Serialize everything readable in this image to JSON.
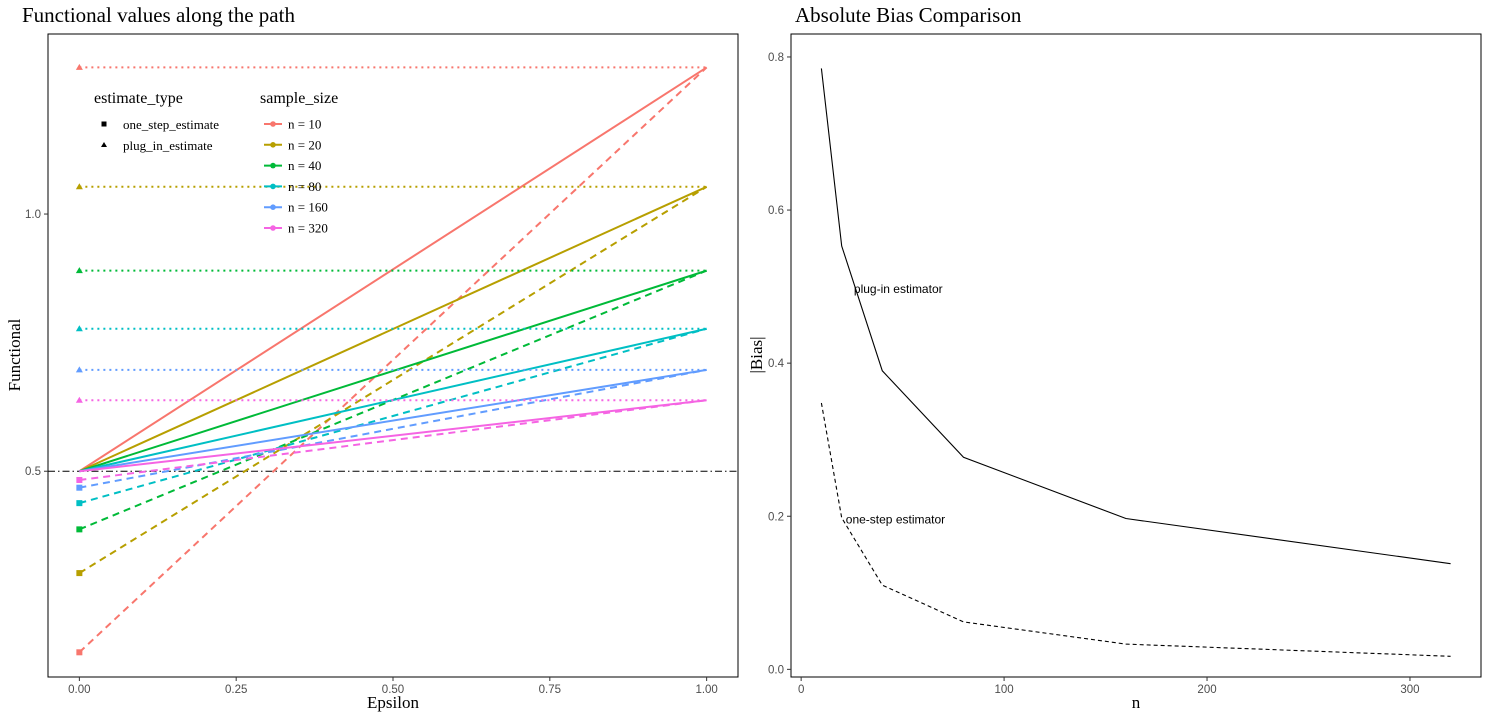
{
  "chart_data": [
    {
      "type": "line",
      "title": "Functional values along the path",
      "xlabel": "Epsilon",
      "ylabel": "Functional",
      "xlim": [
        -0.05,
        1.05
      ],
      "ylim": [
        0.1,
        1.35
      ],
      "xticks": [
        0,
        0.25,
        0.5,
        0.75,
        1
      ],
      "xtick_labels": [
        "0.00",
        "0.25",
        "0.50",
        "0.75",
        "1.00"
      ],
      "yticks": [
        0.5,
        1.0
      ],
      "ytick_labels": [
        "0.5",
        "1.0"
      ],
      "grid": false,
      "reference_line": {
        "y": 0.5,
        "style": "dot-dash"
      },
      "legend": {
        "placement": "top-left",
        "shape_title": "estimate_type",
        "shape_items": [
          {
            "label": "one_step_estimate",
            "shape": "square"
          },
          {
            "label": "plug_in_estimate",
            "shape": "triangle"
          }
        ],
        "color_title": "sample_size"
      },
      "series": [
        {
          "name": "n = 10",
          "color": "#F8766D",
          "plugin": 1.285,
          "one_step_start": 0.148,
          "end": 1.285
        },
        {
          "name": "n = 20",
          "color": "#B79F00",
          "plugin": 1.053,
          "one_step_start": 0.302,
          "end": 1.053
        },
        {
          "name": "n = 40",
          "color": "#00BA38",
          "plugin": 0.89,
          "one_step_start": 0.387,
          "end": 0.89
        },
        {
          "name": "n = 80",
          "color": "#00BFC4",
          "plugin": 0.777,
          "one_step_start": 0.438,
          "end": 0.777
        },
        {
          "name": "n = 160",
          "color": "#619CFF",
          "plugin": 0.697,
          "one_step_start": 0.468,
          "end": 0.697
        },
        {
          "name": "n = 320",
          "color": "#F564E3",
          "plugin": 0.638,
          "one_step_start": 0.483,
          "end": 0.638
        }
      ]
    },
    {
      "type": "line",
      "title": "Absolute Bias Comparison",
      "xlabel": "n",
      "ylabel": "|Bias|",
      "xlim": [
        -5,
        335
      ],
      "ylim": [
        -0.01,
        0.83
      ],
      "xticks": [
        0,
        100,
        200,
        300
      ],
      "xtick_labels": [
        "0",
        "100",
        "200",
        "300"
      ],
      "yticks": [
        0,
        0.2,
        0.4,
        0.6,
        0.8
      ],
      "ytick_labels": [
        "0.0",
        "0.2",
        "0.4",
        "0.6",
        "0.8"
      ],
      "grid": false,
      "series": [
        {
          "name": "plug-in estimator",
          "style": "solid",
          "x": [
            10,
            20,
            40,
            80,
            160,
            320
          ],
          "y": [
            0.785,
            0.553,
            0.39,
            0.277,
            0.197,
            0.138
          ]
        },
        {
          "name": "one-step estimator",
          "style": "dashed",
          "x": [
            10,
            20,
            40,
            80,
            160,
            320
          ],
          "y": [
            0.348,
            0.198,
            0.11,
            0.062,
            0.033,
            0.017
          ]
        }
      ],
      "annotations": [
        {
          "text": "plug-in estimator",
          "x": 26,
          "y": 0.497
        },
        {
          "text": "one-step estimator",
          "x": 22,
          "y": 0.196
        }
      ]
    }
  ]
}
